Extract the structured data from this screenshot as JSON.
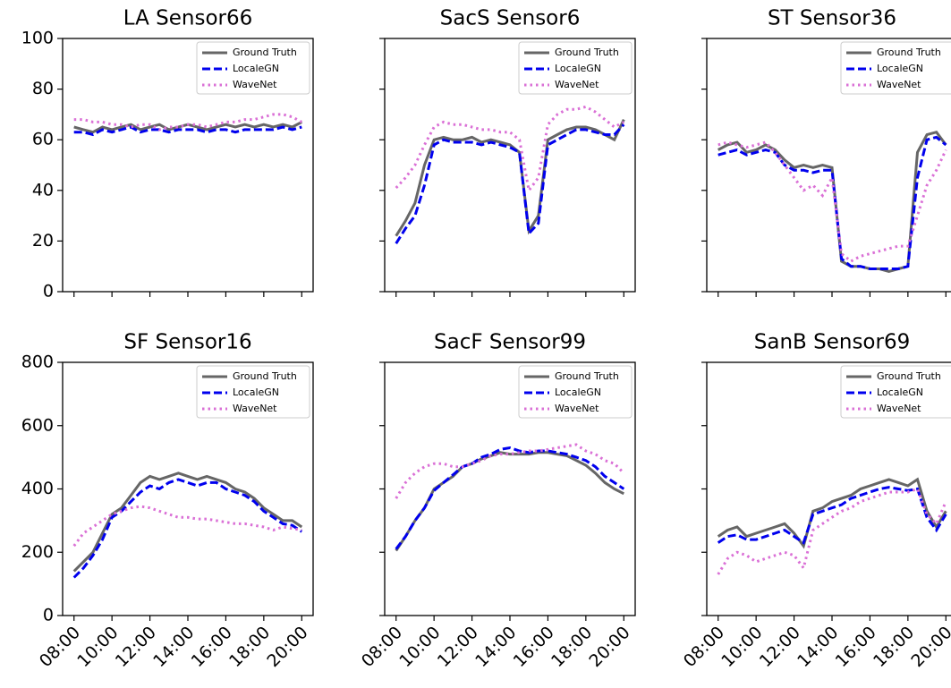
{
  "chart_data": [
    {
      "type": "line",
      "title": "LA Sensor66",
      "x": [
        "08:00",
        "08:30",
        "09:00",
        "09:30",
        "10:00",
        "10:30",
        "11:00",
        "11:30",
        "12:00",
        "12:30",
        "13:00",
        "13:30",
        "14:00",
        "14:30",
        "15:00",
        "15:30",
        "16:00",
        "16:30",
        "17:00",
        "17:30",
        "18:00",
        "18:30",
        "19:00",
        "19:30",
        "20:00"
      ],
      "xlim": [
        "07:24",
        "20:36"
      ],
      "xticks": [
        "08:00",
        "10:00",
        "12:00",
        "14:00",
        "16:00",
        "18:00",
        "20:00"
      ],
      "show_xtick_labels": false,
      "ylim": [
        0,
        100
      ],
      "yticks": [
        0,
        20,
        40,
        60,
        80,
        100
      ],
      "show_ytick_labels": true,
      "legend": "upper right",
      "series": [
        {
          "name": "Ground Truth",
          "color": "#666666",
          "style": "solid",
          "values": [
            65,
            64,
            63,
            65,
            64,
            65,
            66,
            64,
            65,
            66,
            64,
            65,
            66,
            65,
            64,
            65,
            66,
            65,
            66,
            65,
            66,
            65,
            66,
            65,
            67
          ]
        },
        {
          "name": "LocaleGN",
          "color": "#0000ee",
          "style": "dashed",
          "values": [
            63,
            63,
            62,
            64,
            63,
            64,
            65,
            63,
            64,
            64,
            63,
            64,
            64,
            64,
            63,
            64,
            64,
            63,
            64,
            64,
            64,
            64,
            65,
            64,
            65
          ]
        },
        {
          "name": "WaveNet",
          "color": "#da70d6",
          "style": "dotted",
          "values": [
            68,
            68,
            67,
            67,
            66,
            66,
            65,
            66,
            66,
            64,
            65,
            65,
            66,
            66,
            65,
            66,
            67,
            67,
            68,
            68,
            69,
            70,
            70,
            69,
            67
          ]
        }
      ]
    },
    {
      "type": "line",
      "title": "SacS Sensor6",
      "x": [
        "08:00",
        "08:30",
        "09:00",
        "09:30",
        "10:00",
        "10:30",
        "11:00",
        "11:30",
        "12:00",
        "12:30",
        "13:00",
        "13:30",
        "14:00",
        "14:30",
        "15:00",
        "15:30",
        "16:00",
        "16:30",
        "17:00",
        "17:30",
        "18:00",
        "18:30",
        "19:00",
        "19:30",
        "20:00"
      ],
      "xlim": [
        "07:24",
        "20:36"
      ],
      "xticks": [
        "08:00",
        "10:00",
        "12:00",
        "14:00",
        "16:00",
        "18:00",
        "20:00"
      ],
      "show_xtick_labels": false,
      "ylim": [
        0,
        100
      ],
      "yticks": [
        0,
        20,
        40,
        60,
        80,
        100
      ],
      "show_ytick_labels": false,
      "legend": "upper right",
      "series": [
        {
          "name": "Ground Truth",
          "color": "#666666",
          "style": "solid",
          "values": [
            22,
            28,
            35,
            50,
            60,
            61,
            60,
            60,
            61,
            59,
            60,
            59,
            58,
            55,
            24,
            30,
            60,
            62,
            64,
            65,
            65,
            64,
            62,
            60,
            68
          ]
        },
        {
          "name": "LocaleGN",
          "color": "#0000ee",
          "style": "dashed",
          "values": [
            19,
            25,
            30,
            42,
            58,
            60,
            59,
            59,
            59,
            58,
            59,
            58,
            57,
            55,
            23,
            27,
            58,
            60,
            62,
            64,
            64,
            63,
            62,
            62,
            66
          ]
        },
        {
          "name": "WaveNet",
          "color": "#da70d6",
          "style": "dotted",
          "values": [
            41,
            45,
            50,
            58,
            65,
            67,
            66,
            66,
            65,
            64,
            64,
            63,
            63,
            60,
            40,
            45,
            66,
            70,
            72,
            72,
            73,
            71,
            68,
            65,
            67
          ]
        }
      ]
    },
    {
      "type": "line",
      "title": "ST Sensor36",
      "x": [
        "08:00",
        "08:30",
        "09:00",
        "09:30",
        "10:00",
        "10:30",
        "11:00",
        "11:30",
        "12:00",
        "12:30",
        "13:00",
        "13:30",
        "14:00",
        "14:30",
        "15:00",
        "15:30",
        "16:00",
        "16:30",
        "17:00",
        "17:30",
        "18:00",
        "18:30",
        "19:00",
        "19:30",
        "20:00"
      ],
      "xlim": [
        "07:24",
        "20:36"
      ],
      "xticks": [
        "08:00",
        "10:00",
        "12:00",
        "14:00",
        "16:00",
        "18:00",
        "20:00"
      ],
      "show_xtick_labels": false,
      "ylim": [
        0,
        100
      ],
      "yticks": [
        0,
        20,
        40,
        60,
        80,
        100
      ],
      "show_ytick_labels": false,
      "legend": "upper right",
      "series": [
        {
          "name": "Ground Truth",
          "color": "#666666",
          "style": "solid",
          "values": [
            56,
            58,
            59,
            55,
            56,
            58,
            56,
            52,
            49,
            50,
            49,
            50,
            49,
            12,
            10,
            10,
            9,
            9,
            8,
            9,
            10,
            55,
            62,
            63,
            58
          ]
        },
        {
          "name": "LocaleGN",
          "color": "#0000ee",
          "style": "dashed",
          "values": [
            54,
            55,
            56,
            54,
            55,
            56,
            55,
            50,
            48,
            48,
            47,
            48,
            48,
            13,
            10,
            10,
            9,
            9,
            9,
            9,
            10,
            45,
            60,
            61,
            58
          ]
        },
        {
          "name": "WaveNet",
          "color": "#da70d6",
          "style": "dotted",
          "values": [
            58,
            59,
            58,
            57,
            58,
            59,
            55,
            50,
            45,
            40,
            42,
            38,
            45,
            15,
            12,
            14,
            15,
            16,
            17,
            18,
            18,
            30,
            42,
            48,
            56
          ]
        }
      ]
    },
    {
      "type": "line",
      "title": "SF Sensor16",
      "x": [
        "08:00",
        "08:30",
        "09:00",
        "09:30",
        "10:00",
        "10:30",
        "11:00",
        "11:30",
        "12:00",
        "12:30",
        "13:00",
        "13:30",
        "14:00",
        "14:30",
        "15:00",
        "15:30",
        "16:00",
        "16:30",
        "17:00",
        "17:30",
        "18:00",
        "18:30",
        "19:00",
        "19:30",
        "20:00"
      ],
      "xlim": [
        "07:24",
        "20:36"
      ],
      "xticks": [
        "08:00",
        "10:00",
        "12:00",
        "14:00",
        "16:00",
        "18:00",
        "20:00"
      ],
      "show_xtick_labels": true,
      "ylim": [
        0,
        800
      ],
      "yticks": [
        0,
        200,
        400,
        600,
        800
      ],
      "show_ytick_labels": true,
      "legend": "upper right",
      "series": [
        {
          "name": "Ground Truth",
          "color": "#666666",
          "style": "solid",
          "values": [
            140,
            170,
            200,
            260,
            320,
            340,
            380,
            420,
            440,
            430,
            440,
            450,
            440,
            430,
            440,
            430,
            420,
            400,
            390,
            370,
            340,
            320,
            300,
            300,
            280
          ]
        },
        {
          "name": "LocaleGN",
          "color": "#0000ee",
          "style": "dashed",
          "values": [
            120,
            150,
            190,
            240,
            310,
            330,
            360,
            390,
            410,
            400,
            420,
            430,
            420,
            410,
            420,
            420,
            400,
            390,
            380,
            360,
            330,
            310,
            290,
            285,
            265
          ]
        },
        {
          "name": "WaveNet",
          "color": "#da70d6",
          "style": "dotted",
          "values": [
            220,
            260,
            280,
            300,
            320,
            330,
            340,
            345,
            340,
            330,
            320,
            310,
            310,
            305,
            305,
            300,
            295,
            290,
            290,
            285,
            280,
            270,
            280,
            275,
            270
          ]
        }
      ]
    },
    {
      "type": "line",
      "title": "SacF Sensor99",
      "x": [
        "08:00",
        "08:30",
        "09:00",
        "09:30",
        "10:00",
        "10:30",
        "11:00",
        "11:30",
        "12:00",
        "12:30",
        "13:00",
        "13:30",
        "14:00",
        "14:30",
        "15:00",
        "15:30",
        "16:00",
        "16:30",
        "17:00",
        "17:30",
        "18:00",
        "18:30",
        "19:00",
        "19:30",
        "20:00"
      ],
      "xlim": [
        "07:24",
        "20:36"
      ],
      "xticks": [
        "08:00",
        "10:00",
        "12:00",
        "14:00",
        "16:00",
        "18:00",
        "20:00"
      ],
      "show_xtick_labels": true,
      "ylim": [
        0,
        800
      ],
      "yticks": [
        0,
        200,
        400,
        600,
        800
      ],
      "show_ytick_labels": false,
      "legend": "upper right",
      "series": [
        {
          "name": "Ground Truth",
          "color": "#666666",
          "style": "solid",
          "values": [
            205,
            250,
            300,
            340,
            400,
            420,
            440,
            470,
            480,
            495,
            505,
            515,
            510,
            510,
            510,
            515,
            515,
            510,
            505,
            490,
            475,
            450,
            420,
            400,
            385
          ]
        },
        {
          "name": "LocaleGN",
          "color": "#0000ee",
          "style": "dashed",
          "values": [
            210,
            250,
            300,
            340,
            395,
            420,
            445,
            470,
            480,
            500,
            510,
            525,
            530,
            520,
            515,
            520,
            520,
            515,
            510,
            500,
            490,
            470,
            440,
            420,
            400
          ]
        },
        {
          "name": "WaveNet",
          "color": "#da70d6",
          "style": "dotted",
          "values": [
            370,
            420,
            450,
            470,
            480,
            480,
            470,
            470,
            480,
            490,
            505,
            510,
            510,
            515,
            520,
            520,
            525,
            530,
            535,
            540,
            520,
            510,
            490,
            480,
            450
          ]
        }
      ]
    },
    {
      "type": "line",
      "title": "SanB Sensor69",
      "x": [
        "08:00",
        "08:30",
        "09:00",
        "09:30",
        "10:00",
        "10:30",
        "11:00",
        "11:30",
        "12:00",
        "12:30",
        "13:00",
        "13:30",
        "14:00",
        "14:30",
        "15:00",
        "15:30",
        "16:00",
        "16:30",
        "17:00",
        "17:30",
        "18:00",
        "18:30",
        "19:00",
        "19:30",
        "20:00"
      ],
      "xlim": [
        "07:24",
        "20:36"
      ],
      "xticks": [
        "08:00",
        "10:00",
        "12:00",
        "14:00",
        "16:00",
        "18:00",
        "20:00"
      ],
      "show_xtick_labels": true,
      "ylim": [
        0,
        800
      ],
      "yticks": [
        0,
        200,
        400,
        600,
        800
      ],
      "show_ytick_labels": false,
      "legend": "upper right",
      "series": [
        {
          "name": "Ground Truth",
          "color": "#666666",
          "style": "solid",
          "values": [
            250,
            270,
            280,
            250,
            260,
            270,
            280,
            290,
            260,
            220,
            330,
            340,
            360,
            370,
            380,
            400,
            410,
            420,
            430,
            420,
            410,
            430,
            330,
            280,
            330
          ]
        },
        {
          "name": "LocaleGN",
          "color": "#0000ee",
          "style": "dashed",
          "values": [
            230,
            250,
            255,
            240,
            240,
            250,
            260,
            270,
            250,
            230,
            320,
            330,
            340,
            350,
            370,
            380,
            390,
            400,
            405,
            400,
            395,
            400,
            310,
            270,
            320
          ]
        },
        {
          "name": "WaveNet",
          "color": "#da70d6",
          "style": "dotted",
          "values": [
            130,
            180,
            200,
            190,
            170,
            180,
            190,
            200,
            190,
            150,
            270,
            290,
            310,
            330,
            340,
            360,
            370,
            380,
            390,
            390,
            390,
            400,
            320,
            290,
            360
          ]
        }
      ]
    }
  ]
}
